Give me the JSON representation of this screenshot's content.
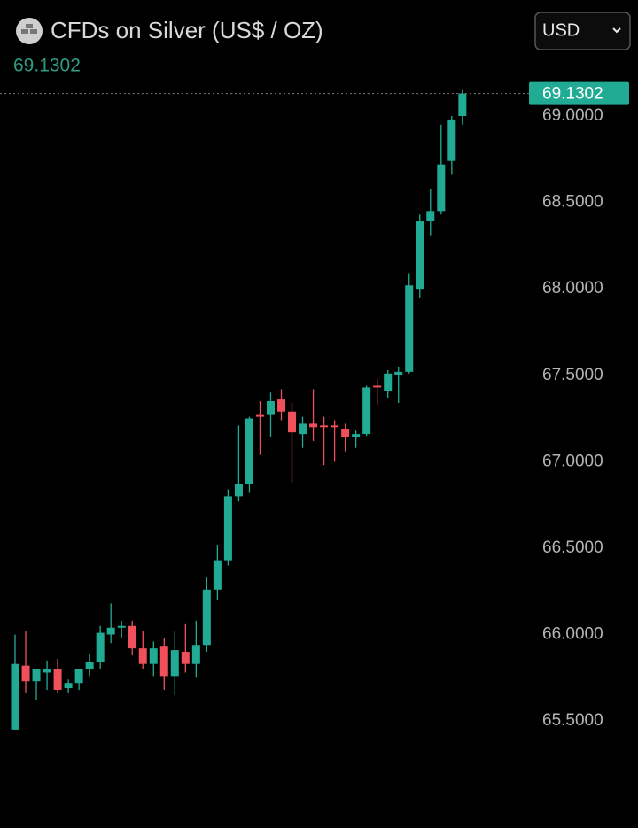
{
  "header": {
    "icon": "silver",
    "title": "CFDs on Silver (US$ / OZ)",
    "currency": "USD"
  },
  "chart_data": {
    "type": "candlestick",
    "last_price": 69.1302,
    "up_color": "#22ab94",
    "down_color": "#f0505c",
    "open": [
      65.45,
      65.82,
      65.73,
      65.78,
      65.8,
      65.69,
      65.72,
      65.8,
      65.84,
      66.0,
      66.04,
      66.05,
      65.92,
      65.83,
      65.93,
      65.76,
      65.9,
      65.83,
      65.94,
      66.26,
      66.43,
      66.8,
      66.87,
      67.27,
      67.27,
      67.36,
      67.29,
      67.16,
      67.22,
      67.21,
      67.21,
      67.19,
      67.14,
      67.16,
      67.44,
      67.41,
      67.5,
      67.52,
      68.0,
      68.39,
      68.45,
      68.74,
      69.0
    ],
    "high": [
      66.0,
      66.02,
      65.8,
      65.85,
      65.86,
      65.74,
      65.8,
      65.89,
      66.05,
      66.18,
      66.08,
      66.08,
      66.02,
      65.96,
      65.98,
      66.02,
      66.06,
      66.08,
      66.33,
      66.52,
      66.84,
      67.21,
      67.26,
      67.35,
      67.4,
      67.42,
      67.34,
      67.26,
      67.42,
      67.26,
      67.24,
      67.22,
      67.18,
      67.44,
      67.48,
      67.53,
      67.55,
      68.09,
      68.43,
      68.58,
      68.95,
      69.0,
      69.15
    ],
    "low": [
      65.45,
      65.66,
      65.62,
      65.68,
      65.66,
      65.66,
      65.68,
      65.76,
      65.8,
      65.95,
      65.98,
      65.88,
      65.8,
      65.76,
      65.68,
      65.65,
      65.78,
      65.75,
      65.9,
      66.2,
      66.4,
      66.77,
      66.82,
      67.04,
      67.14,
      67.24,
      66.88,
      67.08,
      67.12,
      66.98,
      67.0,
      67.06,
      67.08,
      67.15,
      67.33,
      67.37,
      67.34,
      67.51,
      67.95,
      68.31,
      68.43,
      68.66,
      68.95
    ],
    "close": [
      65.83,
      65.73,
      65.8,
      65.8,
      65.68,
      65.72,
      65.8,
      65.84,
      66.01,
      66.04,
      66.05,
      65.92,
      65.83,
      65.92,
      65.76,
      65.91,
      65.83,
      65.94,
      66.26,
      66.43,
      66.8,
      66.87,
      67.25,
      67.26,
      67.35,
      67.29,
      67.17,
      67.22,
      67.2,
      67.2,
      67.2,
      67.14,
      67.16,
      67.43,
      67.43,
      67.51,
      67.52,
      68.02,
      68.39,
      68.45,
      68.72,
      68.98,
      69.1302
    ],
    "ylim": [
      65.06,
      69.21
    ],
    "yticks": [
      {
        "value": 65.5,
        "label": "65.5000"
      },
      {
        "value": 66,
        "label": "66.0000"
      },
      {
        "value": 66.5,
        "label": "66.5000"
      },
      {
        "value": 67,
        "label": "67.0000"
      },
      {
        "value": 67.5,
        "label": "67.5000"
      },
      {
        "value": 68,
        "label": "68.0000"
      },
      {
        "value": 68.5,
        "label": "68.5000"
      },
      {
        "value": 69,
        "label": "69.0000"
      }
    ]
  }
}
